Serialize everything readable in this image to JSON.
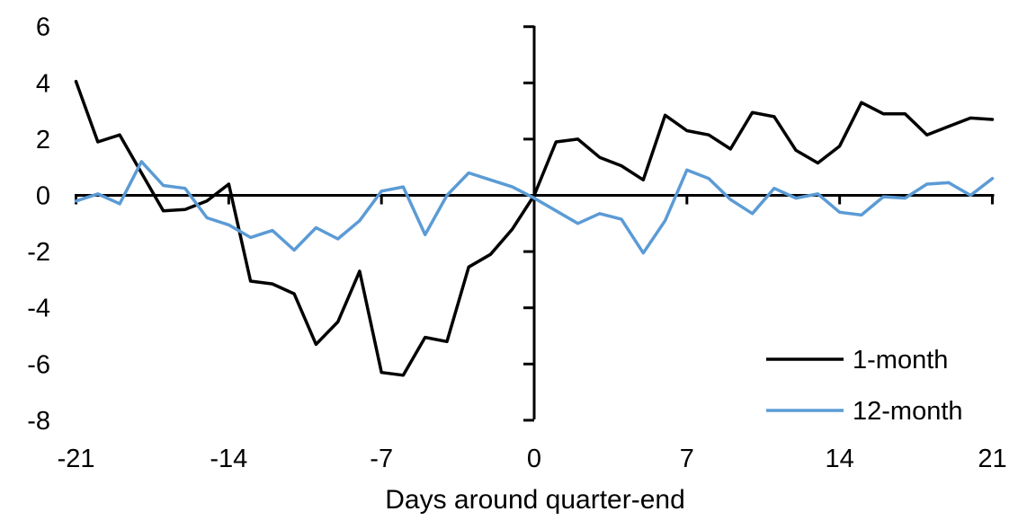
{
  "chart_data": {
    "type": "line",
    "title": "",
    "xlabel": "Days around quarter-end",
    "ylabel": "",
    "x": [
      -21,
      -20,
      -19,
      -18,
      -17,
      -16,
      -15,
      -14,
      -13,
      -12,
      -11,
      -10,
      -9,
      -8,
      -7,
      -6,
      -5,
      -4,
      -3,
      -2,
      -1,
      0,
      1,
      2,
      3,
      4,
      5,
      6,
      7,
      8,
      9,
      10,
      11,
      12,
      13,
      14,
      15,
      16,
      17,
      18,
      19,
      20,
      21
    ],
    "series": [
      {
        "name": "1-month",
        "color": "#000000",
        "values": [
          4.05,
          1.9,
          2.15,
          0.8,
          -0.55,
          -0.5,
          -0.2,
          0.4,
          -3.05,
          -3.15,
          -3.5,
          -5.3,
          -4.5,
          -2.7,
          -6.3,
          -6.4,
          -5.05,
          -5.2,
          -2.55,
          -2.1,
          -1.2,
          0.0,
          1.9,
          2.0,
          1.35,
          1.05,
          0.55,
          2.85,
          2.3,
          2.15,
          1.65,
          2.95,
          2.8,
          1.6,
          1.15,
          1.75,
          3.3,
          2.9,
          2.9,
          2.15,
          2.45,
          2.75,
          2.7
        ]
      },
      {
        "name": "12-month",
        "color": "#5B9BD5",
        "values": [
          -0.2,
          0.05,
          -0.3,
          1.2,
          0.35,
          0.25,
          -0.8,
          -1.05,
          -1.5,
          -1.25,
          -1.95,
          -1.15,
          -1.55,
          -0.9,
          0.15,
          0.3,
          -1.4,
          0.0,
          0.8,
          0.55,
          0.3,
          -0.1,
          -0.55,
          -1.0,
          -0.65,
          -0.85,
          -2.05,
          -0.9,
          0.9,
          0.6,
          -0.15,
          -0.65,
          0.25,
          -0.1,
          0.05,
          -0.6,
          -0.7,
          -0.05,
          -0.1,
          0.4,
          0.45,
          0.0,
          0.6
        ]
      }
    ],
    "xlim": [
      -21,
      21
    ],
    "ylim": [
      -8,
      6
    ],
    "yticks": [
      6,
      4,
      2,
      0,
      -2,
      -4,
      -6,
      -8
    ],
    "xticks": [
      -21,
      -14,
      -7,
      0,
      7,
      14,
      21
    ],
    "grid": false,
    "legend_position": "lower-right",
    "axis_color": "#000000",
    "background": "#FFFFFF"
  }
}
